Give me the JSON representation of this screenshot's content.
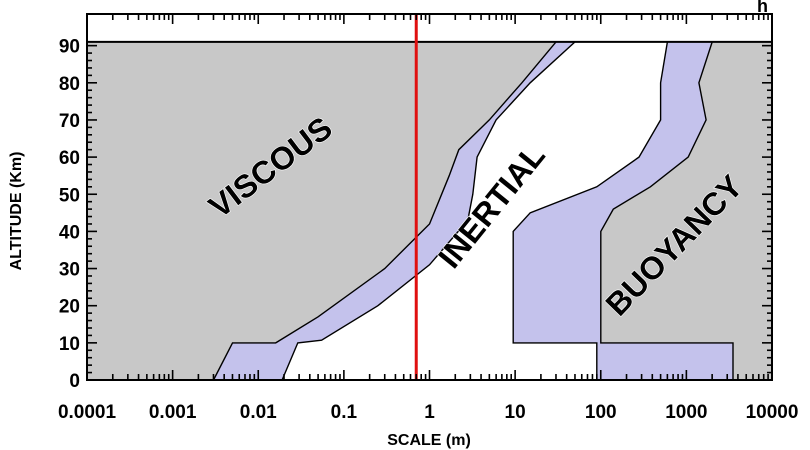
{
  "chart_data": {
    "type": "area",
    "xscale": "log",
    "xlim": [
      0.0001,
      10000
    ],
    "ylim": [
      0,
      91
    ],
    "xlabel": "SCALE (m)",
    "ylabel": "ALTITUDE (Km)",
    "x_ticks": [
      0.0001,
      0.001,
      0.01,
      0.1,
      1,
      10,
      100,
      1000,
      10000
    ],
    "x_tick_labels": [
      "0.0001",
      "0.001",
      "0.01",
      "0.1",
      "1",
      "10",
      "100",
      "1000",
      "10000"
    ],
    "y_ticks": [
      0,
      10,
      20,
      30,
      40,
      50,
      60,
      70,
      80,
      90
    ],
    "y_tick_labels": [
      "0",
      "10",
      "20",
      "30",
      "40",
      "50",
      "60",
      "70",
      "80",
      "90"
    ],
    "regions": [
      {
        "label": "VISCOUS",
        "color": "#c8c8c8"
      },
      {
        "label": "INERTIAL",
        "color": "#ffffff"
      },
      {
        "label": "BUOYANCY",
        "color": "#c8c8c8"
      }
    ],
    "transition_bands": [
      {
        "between": "VISCOUS-INERTIAL",
        "color": "#c4c2ec",
        "left_edge": [
          [
            0.003,
            0
          ],
          [
            0.005,
            10
          ],
          [
            0.016,
            10
          ],
          [
            0.05,
            17
          ],
          [
            0.3,
            30
          ],
          [
            1.0,
            42
          ],
          [
            1.7,
            55
          ],
          [
            2.2,
            62
          ],
          [
            5,
            70
          ],
          [
            12,
            80
          ],
          [
            30,
            91
          ]
        ],
        "right_edge": [
          [
            0.019,
            0
          ],
          [
            0.029,
            10
          ],
          [
            0.055,
            10.7
          ],
          [
            0.25,
            20
          ],
          [
            1.0,
            31
          ],
          [
            2.8,
            43
          ],
          [
            3.2,
            50
          ],
          [
            3.6,
            60
          ],
          [
            6,
            70
          ],
          [
            15,
            80
          ],
          [
            50,
            91
          ]
        ]
      },
      {
        "between": "INERTIAL-BUOYANCY",
        "color": "#c4c2ec",
        "left_edge": [
          [
            90,
            0
          ],
          [
            90,
            10
          ],
          [
            9.5,
            10
          ],
          [
            9.5,
            40
          ],
          [
            15,
            45
          ],
          [
            90,
            52
          ],
          [
            280,
            60
          ],
          [
            500,
            70
          ],
          [
            500,
            80
          ],
          [
            600,
            91
          ]
        ],
        "right_edge": [
          [
            3500,
            0
          ],
          [
            3500,
            10
          ],
          [
            100,
            10
          ],
          [
            100,
            40
          ],
          [
            140,
            46
          ],
          [
            380,
            52
          ],
          [
            1050,
            60
          ],
          [
            1700,
            70
          ],
          [
            1400,
            80
          ],
          [
            2000,
            91
          ]
        ]
      }
    ],
    "reference_line": {
      "x": 0.7,
      "color": "#e01010"
    },
    "top_boundary": 91,
    "grid": false
  },
  "title_partial": "h"
}
